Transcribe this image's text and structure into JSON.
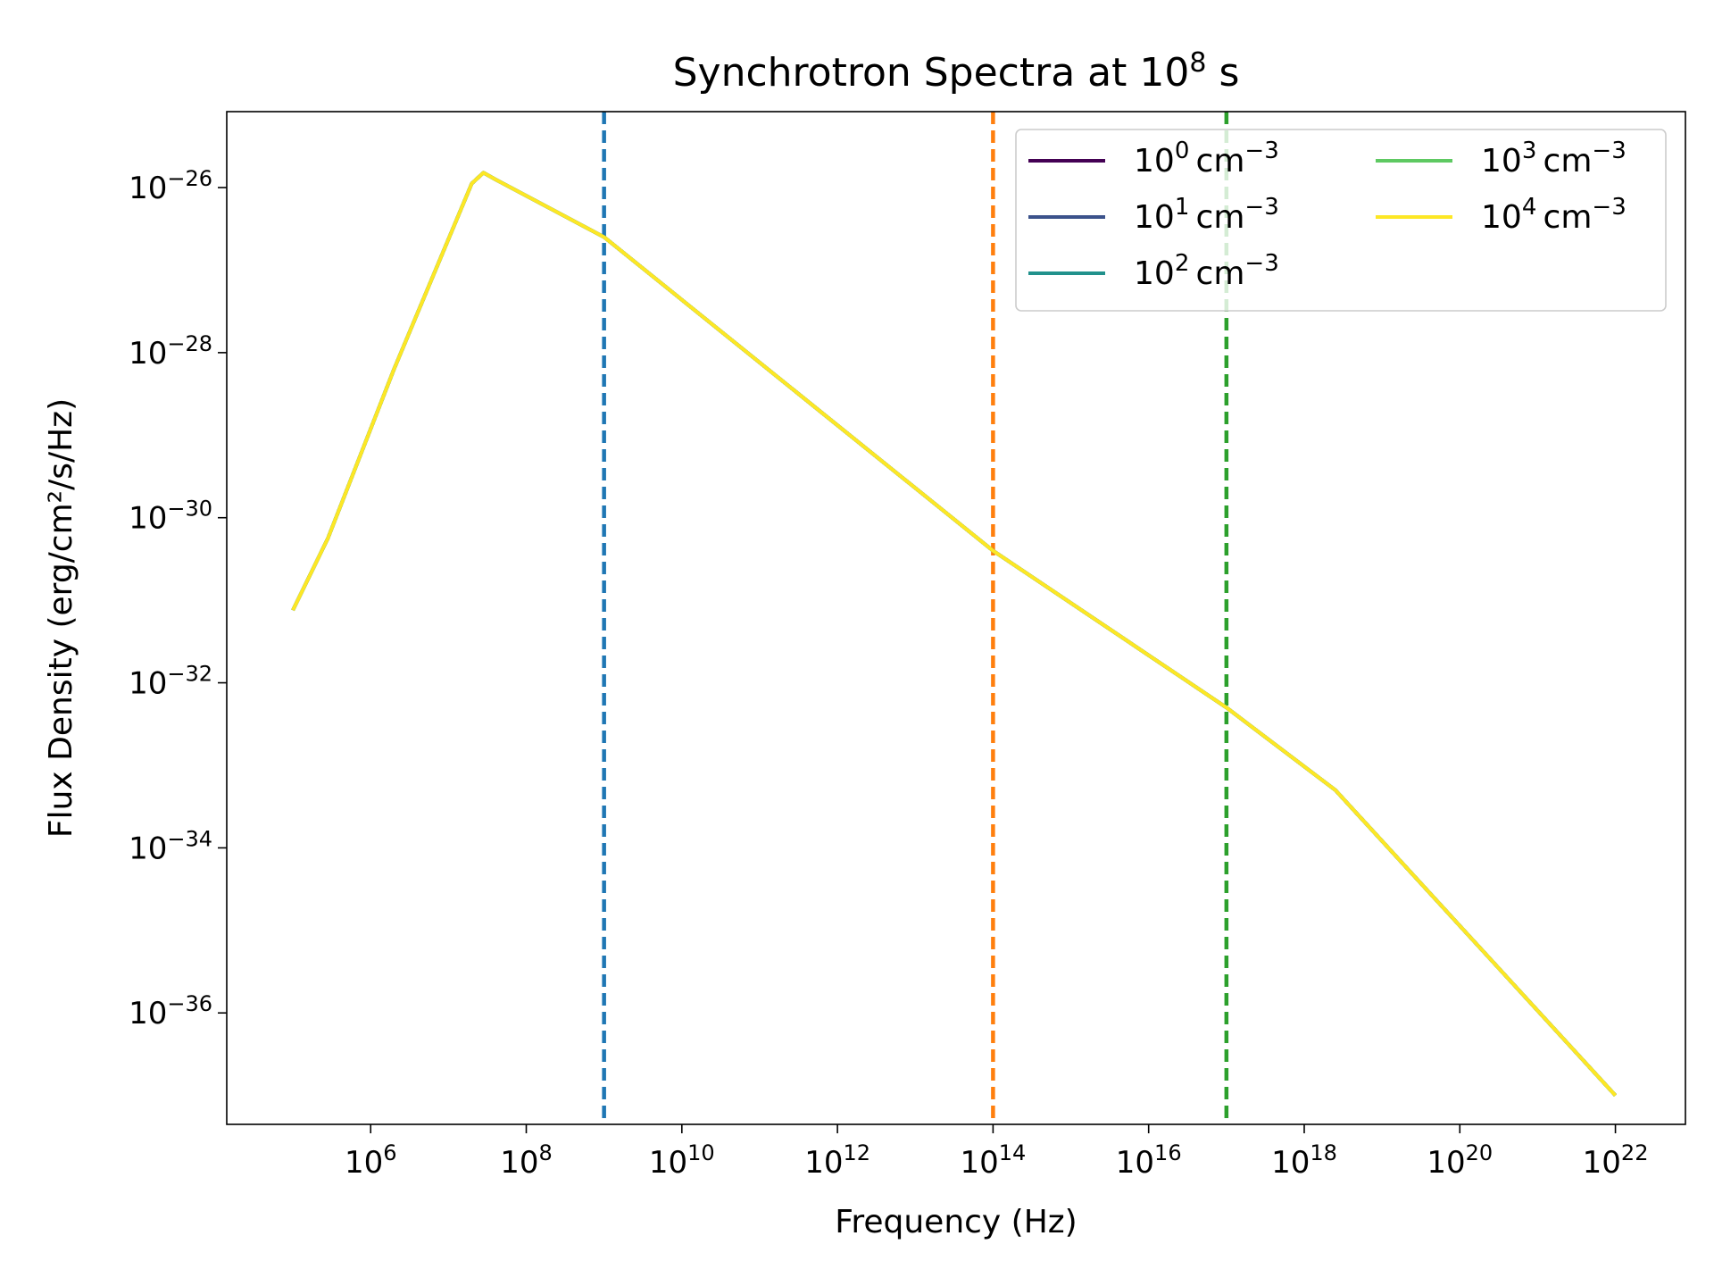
{
  "chart_data": {
    "type": "line",
    "title": {
      "base": "Synchrotron Spectra at 10",
      "sup": "8",
      "suffix": " s"
    },
    "xlabel": "Frequency (Hz)",
    "ylabel": "Flux Density (erg/cm²/s/Hz)",
    "xscale": "log",
    "yscale": "log",
    "xlim_log10": [
      4.15,
      22.9
    ],
    "ylim_log10": [
      -37.35,
      -25.08
    ],
    "x_tick_exponents": [
      "6",
      "8",
      "10",
      "12",
      "14",
      "16",
      "18",
      "20",
      "22"
    ],
    "y_tick_exponents": [
      "−26",
      "−28",
      "−30",
      "−32",
      "−34",
      "−36"
    ],
    "grid": false,
    "legend_location": "upper right",
    "legend_columns": 2,
    "series": [
      {
        "name_base": "10",
        "name_exp": "0",
        "name_unit": "cm",
        "name_unit_exp": "−3",
        "color": "#440154"
      },
      {
        "name_base": "10",
        "name_exp": "1",
        "name_unit": "cm",
        "name_unit_exp": "−3",
        "color": "#3b528b"
      },
      {
        "name_base": "10",
        "name_exp": "2",
        "name_unit": "cm",
        "name_unit_exp": "−3",
        "color": "#21918c"
      },
      {
        "name_base": "10",
        "name_exp": "3",
        "name_unit": "cm",
        "name_unit_exp": "−3",
        "color": "#5ec962"
      },
      {
        "name_base": "10",
        "name_exp": "4",
        "name_unit": "cm",
        "name_unit_exp": "−3",
        "color": "#fde725"
      }
    ],
    "curve_log10_points": [
      [
        5.0,
        -31.12
      ],
      [
        5.45,
        -30.25
      ],
      [
        6.3,
        -28.2
      ],
      [
        7.3,
        -25.95
      ],
      [
        7.45,
        -25.82
      ],
      [
        7.6,
        -25.9
      ],
      [
        9.0,
        -26.6
      ],
      [
        14.0,
        -30.4
      ],
      [
        17.0,
        -32.3
      ],
      [
        18.4,
        -33.3
      ],
      [
        22.0,
        -37.0
      ]
    ],
    "vertical_lines": [
      {
        "x_log10": 9.0,
        "color": "#1f77b4",
        "style": "dashed"
      },
      {
        "x_log10": 14.0,
        "color": "#ff7f0e",
        "style": "dashed"
      },
      {
        "x_log10": 17.0,
        "color": "#2ca02c",
        "style": "dashed"
      }
    ]
  }
}
